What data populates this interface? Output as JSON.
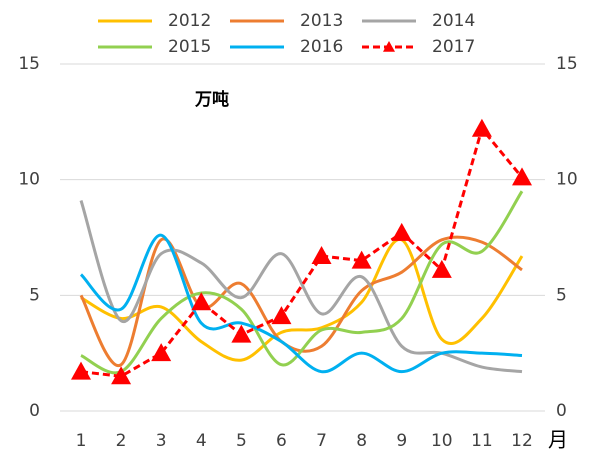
{
  "chart_data": {
    "type": "line",
    "annotation": "万吨",
    "xlabel": "月",
    "categories": [
      "1",
      "2",
      "3",
      "4",
      "5",
      "6",
      "7",
      "8",
      "9",
      "10",
      "11",
      "12"
    ],
    "ylim": [
      0,
      15
    ],
    "yticks": [
      0,
      5,
      10,
      15
    ],
    "y2lim": [
      0,
      15
    ],
    "y2ticks": [
      0,
      5,
      10,
      15
    ],
    "grid": true,
    "legend": "top",
    "smooth": true,
    "series": [
      {
        "name": "2012",
        "color": "#FFC000",
        "values": [
          4.9,
          4.0,
          4.5,
          3.0,
          2.2,
          3.4,
          3.6,
          4.7,
          7.4,
          3.1,
          4.0,
          6.7
        ]
      },
      {
        "name": "2013",
        "color": "#ED7D31",
        "values": [
          5.0,
          2.0,
          7.4,
          4.5,
          5.5,
          3.0,
          2.8,
          5.2,
          6.0,
          7.4,
          7.3,
          6.1
        ]
      },
      {
        "name": "2014",
        "color": "#A5A5A5",
        "values": [
          9.1,
          3.9,
          6.8,
          6.4,
          4.9,
          6.8,
          4.2,
          5.8,
          2.8,
          2.5,
          1.9,
          1.7
        ]
      },
      {
        "name": "2015",
        "color": "#92D050",
        "values": [
          2.4,
          1.7,
          4.0,
          5.1,
          4.4,
          2.0,
          3.5,
          3.4,
          4.0,
          7.2,
          6.9,
          9.5
        ]
      },
      {
        "name": "2016",
        "color": "#00B0F0",
        "values": [
          5.9,
          4.4,
          7.6,
          3.8,
          3.8,
          3.0,
          1.7,
          2.5,
          1.7,
          2.5,
          2.5,
          2.4
        ]
      },
      {
        "name": "2017",
        "color": "#FF0000",
        "dashed": true,
        "marker": "triangle",
        "smooth": false,
        "values": [
          1.7,
          1.5,
          2.5,
          4.7,
          3.3,
          4.1,
          6.7,
          6.5,
          7.7,
          6.1,
          12.2,
          10.1
        ]
      }
    ]
  }
}
